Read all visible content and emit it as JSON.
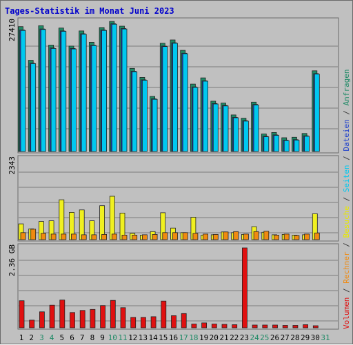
{
  "chart_data": {
    "type": "bar",
    "title": "Tages-Statistik im Monat Juni 2023",
    "categories": [
      "1",
      "2",
      "3",
      "4",
      "5",
      "6",
      "7",
      "8",
      "9",
      "10",
      "11",
      "12",
      "13",
      "14",
      "15",
      "16",
      "17",
      "18",
      "19",
      "20",
      "21",
      "22",
      "23",
      "24",
      "25",
      "26",
      "27",
      "28",
      "29",
      "30",
      "31"
    ],
    "weekend_days": [
      "3",
      "4",
      "10",
      "11",
      "17",
      "18",
      "24",
      "25",
      "31"
    ],
    "panels": [
      {
        "key": "top",
        "ymax": 27410,
        "ymax_label": "27410",
        "series": [
          {
            "name": "Anfragen",
            "color": "#1f8a66",
            "values": [
              26300,
              19200,
              26500,
              22400,
              26000,
              22200,
              25400,
              23000,
              26100,
              27400,
              26400,
              17500,
              15600,
              11600,
              22800,
              23500,
              21300,
              14200,
              15500,
              10600,
              10200,
              7700,
              7000,
              10400,
              3700,
              4000,
              2900,
              3000,
              3800,
              17000
            ]
          },
          {
            "name": "Dateien",
            "color": "#1e3fcc",
            "values": [
              25600,
              18600,
              25800,
              21800,
              25400,
              21700,
              24800,
              22400,
              25600,
              26900,
              25900,
              16900,
              15100,
              11100,
              22200,
              22900,
              20700,
              13600,
              14900,
              10100,
              9700,
              7200,
              6500,
              9900,
              3200,
              3500,
              2400,
              2500,
              3300,
              16400
            ]
          },
          {
            "name": "Seiten",
            "color": "#00c8f0",
            "values": [
              25500,
              18500,
              25700,
              21700,
              25300,
              21600,
              24700,
              22300,
              25500,
              26800,
              25800,
              16800,
              15000,
              11000,
              22100,
              22800,
              20600,
              13500,
              14800,
              10000,
              9600,
              7100,
              6400,
              9800,
              3100,
              3400,
              2300,
              2400,
              3200,
              16300
            ]
          }
        ]
      },
      {
        "key": "middle",
        "ymax": 2343,
        "ymax_label": "2343",
        "series": [
          {
            "name": "Besuche",
            "color": "#f0f020",
            "values": [
              450,
              310,
              520,
              540,
              1140,
              780,
              850,
              540,
              970,
              1240,
              760,
              180,
              130,
              230,
              770,
              330,
              200,
              640,
              130,
              140,
              220,
              200,
              150,
              370,
              210,
              140,
              150,
              130,
              140,
              740
            ]
          },
          {
            "name": "Rechner",
            "color": "#f08a10",
            "values": [
              200,
              300,
              180,
              160,
              160,
              160,
              140,
              140,
              150,
              160,
              130,
              130,
              140,
              150,
              200,
              200,
              200,
              180,
              160,
              150,
              220,
              230,
              160,
              230,
              240,
              130,
              160,
              120,
              160,
              190
            ]
          }
        ]
      },
      {
        "key": "bottom",
        "ymax": 2.36,
        "ymax_label": "2.36 GB",
        "series": [
          {
            "name": "Volumen",
            "color": "#e01010",
            "values": [
              0.78,
              0.22,
              0.46,
              0.65,
              0.8,
              0.44,
              0.5,
              0.53,
              0.64,
              0.79,
              0.58,
              0.3,
              0.3,
              0.32,
              0.77,
              0.35,
              0.41,
              0.11,
              0.14,
              0.11,
              0.1,
              0.09,
              2.3,
              0.08,
              0.08,
              0.08,
              0.07,
              0.07,
              0.09,
              0.06
            ]
          }
        ]
      }
    ],
    "legend": [
      {
        "label": "Volumen",
        "color": "#e01010"
      },
      {
        "label": "/",
        "color": "#3a3a3a"
      },
      {
        "label": "Rechner",
        "color": "#f08a10"
      },
      {
        "label": "/",
        "color": "#3a3a3a"
      },
      {
        "label": "Besuche",
        "color": "#e8e800"
      },
      {
        "label": "/",
        "color": "#3a3a3a"
      },
      {
        "label": "Seiten",
        "color": "#00c8f0"
      },
      {
        "label": "/",
        "color": "#3a3a3a"
      },
      {
        "label": "Dateien",
        "color": "#1e3fcc"
      },
      {
        "label": "/",
        "color": "#3a3a3a"
      },
      {
        "label": "Anfragen",
        "color": "#1f8a66"
      }
    ],
    "colors": {
      "title": "#0000cc",
      "weekday_label": "#000000",
      "weekend_label": "#1f8a66"
    }
  }
}
